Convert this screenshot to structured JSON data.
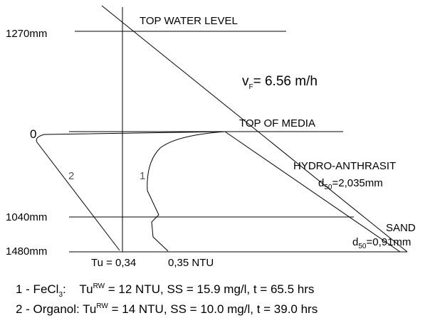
{
  "labels": {
    "depth_top": "1270mm",
    "top_water_level": "TOP WATER LEVEL",
    "velocity": {
      "symbol": "v",
      "subscript": "F",
      "text": "= 6.56 m/h"
    },
    "top_of_media": "TOP OF MEDIA",
    "origin": "0",
    "curve_2": "2",
    "curve_1": "1",
    "hydro_anthrasit": {
      "name": "HYDRO-ANTHRASIT",
      "d_symbol": "d",
      "d_subscript": "50",
      "d_value": "=2,035mm"
    },
    "depth_mid": "1040mm",
    "sand": {
      "name": "SAND",
      "d_symbol": "d",
      "d_subscript": "50",
      "d_value": "=0,91mm"
    },
    "depth_bottom": "1480mm",
    "tu_1": "Tu = 0,34",
    "tu_2": "0,35 NTU"
  },
  "legend": [
    {
      "prefix": "1 - FeCl",
      "prefix_sub": "3",
      "mid": ":    Tu",
      "sup": "RW",
      "text": " = 12 NTU, SS = 15.9 mg/l, t = 65.5 hrs"
    },
    {
      "prefix": "2 - Organol: Tu",
      "sup": "RW",
      "text": " = 14 NTU, SS = 10.0 mg/l, t = 39.0 hrs"
    }
  ]
}
